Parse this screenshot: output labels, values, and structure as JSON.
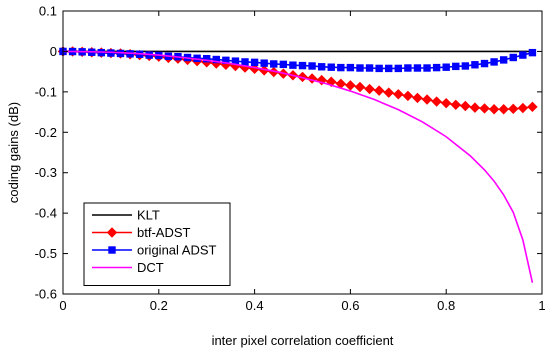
{
  "chart_data": {
    "type": "line",
    "title": "",
    "xlabel": "inter pixel correlation coefficient",
    "ylabel": "coding gains (dB)",
    "xlim": [
      0,
      1
    ],
    "ylim": [
      -0.6,
      0.1
    ],
    "xticks": [
      0,
      0.2,
      0.4,
      0.6,
      0.8,
      1
    ],
    "xtick_labels": [
      "0",
      "0.2",
      "0.4",
      "0.6",
      "0.8",
      "1"
    ],
    "yticks": [
      -0.6,
      -0.5,
      -0.4,
      -0.3,
      -0.2,
      -0.1,
      0,
      0.1
    ],
    "ytick_labels": [
      "-0.6",
      "-0.5",
      "-0.4",
      "-0.3",
      "-0.2",
      "-0.1",
      "0",
      "0.1"
    ],
    "grid": false,
    "legend_position": "lower-left",
    "series": [
      {
        "name": "KLT",
        "color": "#000000",
        "marker": "none",
        "x": [
          0.0,
          0.98
        ],
        "y": [
          0.0,
          0.0
        ]
      },
      {
        "name": "btf-ADST",
        "color": "#ff0000",
        "marker": "diamond",
        "x": [
          0.0,
          0.02,
          0.04,
          0.06,
          0.08,
          0.1,
          0.12,
          0.14,
          0.16,
          0.18,
          0.2,
          0.22,
          0.24,
          0.26,
          0.28,
          0.3,
          0.32,
          0.34,
          0.36,
          0.38,
          0.4,
          0.42,
          0.44,
          0.46,
          0.48,
          0.5,
          0.52,
          0.54,
          0.56,
          0.58,
          0.6,
          0.62,
          0.64,
          0.66,
          0.68,
          0.7,
          0.72,
          0.74,
          0.76,
          0.78,
          0.8,
          0.82,
          0.84,
          0.86,
          0.88,
          0.9,
          0.92,
          0.94,
          0.96,
          0.98
        ],
        "y": [
          0.0,
          0.0,
          -0.001,
          -0.002,
          -0.003,
          -0.004,
          -0.005,
          -0.007,
          -0.009,
          -0.011,
          -0.013,
          -0.016,
          -0.018,
          -0.021,
          -0.024,
          -0.027,
          -0.03,
          -0.033,
          -0.036,
          -0.04,
          -0.043,
          -0.047,
          -0.051,
          -0.055,
          -0.059,
          -0.063,
          -0.067,
          -0.071,
          -0.075,
          -0.08,
          -0.084,
          -0.088,
          -0.093,
          -0.097,
          -0.102,
          -0.106,
          -0.11,
          -0.115,
          -0.119,
          -0.124,
          -0.128,
          -0.132,
          -0.135,
          -0.139,
          -0.141,
          -0.143,
          -0.143,
          -0.142,
          -0.14,
          -0.137
        ]
      },
      {
        "name": "original ADST",
        "color": "#0000ff",
        "marker": "square",
        "x": [
          0.0,
          0.02,
          0.04,
          0.06,
          0.08,
          0.1,
          0.12,
          0.14,
          0.16,
          0.18,
          0.2,
          0.22,
          0.24,
          0.26,
          0.28,
          0.3,
          0.32,
          0.34,
          0.36,
          0.38,
          0.4,
          0.42,
          0.44,
          0.46,
          0.48,
          0.5,
          0.52,
          0.54,
          0.56,
          0.58,
          0.6,
          0.62,
          0.64,
          0.66,
          0.68,
          0.7,
          0.72,
          0.74,
          0.76,
          0.78,
          0.8,
          0.82,
          0.84,
          0.86,
          0.88,
          0.9,
          0.92,
          0.94,
          0.96,
          0.98
        ],
        "y": [
          0.0,
          -0.0003,
          -0.001,
          -0.002,
          -0.003,
          -0.004,
          -0.005,
          -0.006,
          -0.007,
          -0.009,
          -0.01,
          -0.012,
          -0.013,
          -0.015,
          -0.017,
          -0.018,
          -0.02,
          -0.022,
          -0.024,
          -0.026,
          -0.027,
          -0.029,
          -0.031,
          -0.032,
          -0.034,
          -0.035,
          -0.036,
          -0.038,
          -0.039,
          -0.04,
          -0.04,
          -0.041,
          -0.041,
          -0.042,
          -0.042,
          -0.042,
          -0.041,
          -0.041,
          -0.041,
          -0.04,
          -0.039,
          -0.037,
          -0.036,
          -0.033,
          -0.03,
          -0.026,
          -0.021,
          -0.015,
          -0.009,
          -0.003
        ]
      },
      {
        "name": "DCT",
        "color": "#ff00ff",
        "marker": "none",
        "x": [
          0.0,
          0.05,
          0.1,
          0.15,
          0.2,
          0.25,
          0.3,
          0.35,
          0.4,
          0.45,
          0.5,
          0.55,
          0.6,
          0.65,
          0.7,
          0.75,
          0.8,
          0.85,
          0.88,
          0.9,
          0.92,
          0.94,
          0.96,
          0.98
        ],
        "y": [
          0.0,
          -0.0006,
          -0.002,
          -0.005,
          -0.009,
          -0.015,
          -0.022,
          -0.03,
          -0.04,
          -0.051,
          -0.065,
          -0.08,
          -0.098,
          -0.119,
          -0.144,
          -0.174,
          -0.211,
          -0.258,
          -0.293,
          -0.321,
          -0.355,
          -0.398,
          -0.466,
          -0.572
        ]
      }
    ]
  }
}
